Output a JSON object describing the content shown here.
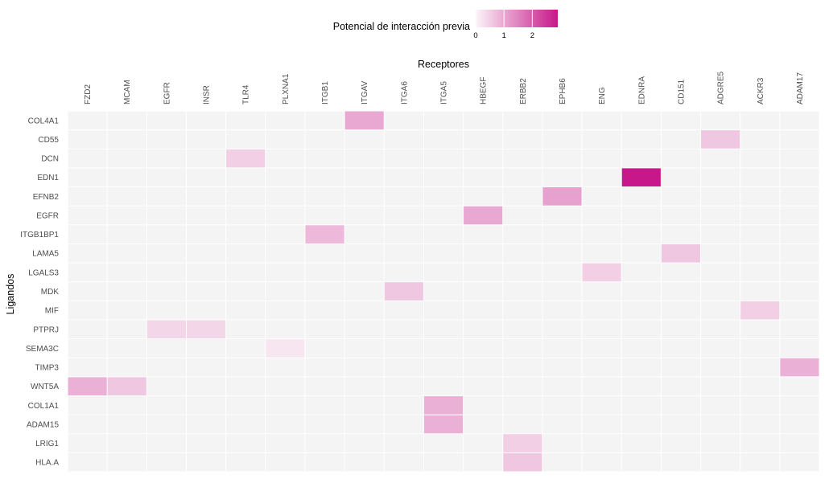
{
  "chart_data": {
    "type": "heatmap",
    "legend": {
      "title": "Potencial de interacción previa",
      "ticks": [
        0,
        1,
        2
      ],
      "range": [
        0,
        2.9
      ],
      "colors": {
        "low": "#fbf5f8",
        "high": "#c7178a"
      }
    },
    "xlabel": "Receptores",
    "ylabel": "Ligandos",
    "x_categories": [
      "FZD2",
      "MCAM",
      "EGFR",
      "INSR",
      "TLR4",
      "PLXNA1",
      "ITGB1",
      "ITGAV",
      "ITGA6",
      "ITGA5",
      "HBEGF",
      "ERBB2",
      "EPHB6",
      "ENG",
      "EDNRA",
      "CD151",
      "ADGRE5",
      "ACKR3",
      "ADAM17"
    ],
    "y_categories": [
      "COL4A1",
      "CD55",
      "DCN",
      "EDN1",
      "EFNB2",
      "EGFR",
      "ITGB1BP1",
      "LAMA5",
      "LGALS3",
      "MDK",
      "MIF",
      "PTPRJ",
      "SEMA3C",
      "TIMP3",
      "WNT5A",
      "COL1A1",
      "ADAM15",
      "LRIG1",
      "HLA.A"
    ],
    "background_color": "#f4f4f4",
    "cells": [
      {
        "ligand": "COL4A1",
        "receptor": "ITGAV",
        "value": 1.0
      },
      {
        "ligand": "CD55",
        "receptor": "ADGRE5",
        "value": 0.6
      },
      {
        "ligand": "DCN",
        "receptor": "TLR4",
        "value": 0.5
      },
      {
        "ligand": "EDN1",
        "receptor": "EDNRA",
        "value": 2.9
      },
      {
        "ligand": "EFNB2",
        "receptor": "EPHB6",
        "value": 1.1
      },
      {
        "ligand": "EGFR",
        "receptor": "HBEGF",
        "value": 1.0
      },
      {
        "ligand": "ITGB1BP1",
        "receptor": "ITGB1",
        "value": 0.8
      },
      {
        "ligand": "LAMA5",
        "receptor": "CD151",
        "value": 0.6
      },
      {
        "ligand": "LGALS3",
        "receptor": "ENG",
        "value": 0.5
      },
      {
        "ligand": "MDK",
        "receptor": "ITGA6",
        "value": 0.6
      },
      {
        "ligand": "MIF",
        "receptor": "ACKR3",
        "value": 0.5
      },
      {
        "ligand": "PTPRJ",
        "receptor": "EGFR",
        "value": 0.4
      },
      {
        "ligand": "PTPRJ",
        "receptor": "INSR",
        "value": 0.4
      },
      {
        "ligand": "SEMA3C",
        "receptor": "PLXNA1",
        "value": 0.2
      },
      {
        "ligand": "TIMP3",
        "receptor": "ADAM17",
        "value": 0.9
      },
      {
        "ligand": "WNT5A",
        "receptor": "FZD2",
        "value": 0.9
      },
      {
        "ligand": "WNT5A",
        "receptor": "MCAM",
        "value": 0.6
      },
      {
        "ligand": "COL1A1",
        "receptor": "ITGA5",
        "value": 0.9
      },
      {
        "ligand": "ADAM15",
        "receptor": "ITGA5",
        "value": 0.9
      },
      {
        "ligand": "LRIG1",
        "receptor": "ERBB2",
        "value": 0.5
      },
      {
        "ligand": "HLA.A",
        "receptor": "ERBB2",
        "value": 0.6
      }
    ]
  }
}
